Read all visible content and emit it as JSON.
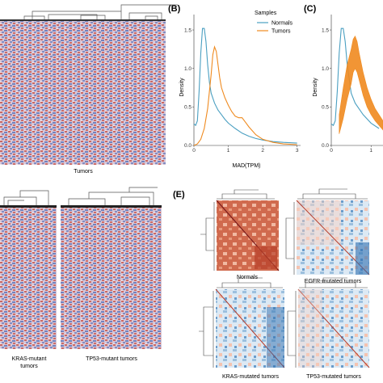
{
  "panels": {
    "B": "(B)",
    "C": "(C)",
    "E": "(E)"
  },
  "heatmap_labels": {
    "tumors": "Tumors",
    "kras_line1": "KRAS-mutant",
    "kras_line2": "tumors",
    "tp53": "TP53-mutant tumors"
  },
  "corr_labels": {
    "normals": "Normals",
    "egfr": "EGFR-mutated tumors",
    "kras": "KRAS-mutated tumors",
    "tp53": "TP53-mutated tumors"
  },
  "colors": {
    "normals": "#4a9fc1",
    "tumors": "#ef8a1f",
    "heat_red": "#c8483a",
    "heat_blue": "#3b5fb3",
    "corr_blue": "#2f6fb0"
  },
  "chart_data": [
    {
      "type": "line",
      "panel": "B",
      "title": "",
      "xlabel": "MAD(TPM)",
      "ylabel": "Density",
      "xlim": [
        0,
        3.1
      ],
      "ylim": [
        0,
        1.7
      ],
      "xticks": [
        "0",
        "1",
        "2",
        "3"
      ],
      "yticks": [
        "0.0",
        "0.5",
        "1.0",
        "1.5"
      ],
      "legend_title": "Samples",
      "legend_position": "top-right",
      "series": [
        {
          "name": "Normals",
          "color": "#4a9fc1",
          "x": [
            0.0,
            0.05,
            0.1,
            0.15,
            0.2,
            0.25,
            0.3,
            0.35,
            0.4,
            0.45,
            0.5,
            0.6,
            0.7,
            0.8,
            0.9,
            1.0,
            1.2,
            1.4,
            1.6,
            1.8,
            2.0,
            2.3,
            2.6,
            3.0
          ],
          "y": [
            0.28,
            0.26,
            0.32,
            0.7,
            1.2,
            1.52,
            1.52,
            1.35,
            1.05,
            0.82,
            0.68,
            0.55,
            0.46,
            0.4,
            0.34,
            0.29,
            0.22,
            0.16,
            0.12,
            0.09,
            0.07,
            0.05,
            0.04,
            0.03
          ]
        },
        {
          "name": "Tumors",
          "color": "#ef8a1f",
          "x": [
            0.0,
            0.1,
            0.2,
            0.3,
            0.4,
            0.5,
            0.55,
            0.6,
            0.65,
            0.7,
            0.75,
            0.8,
            0.9,
            1.0,
            1.1,
            1.2,
            1.3,
            1.4,
            1.5,
            1.6,
            1.8,
            2.0,
            2.3,
            2.6,
            3.0
          ],
          "y": [
            0.0,
            0.02,
            0.08,
            0.22,
            0.48,
            0.92,
            1.18,
            1.28,
            1.22,
            1.05,
            0.88,
            0.75,
            0.62,
            0.52,
            0.44,
            0.38,
            0.36,
            0.36,
            0.3,
            0.24,
            0.14,
            0.08,
            0.04,
            0.02,
            0.01
          ]
        }
      ]
    },
    {
      "type": "line",
      "panel": "C",
      "title": "",
      "xlabel": "",
      "ylabel": "Density",
      "xlim": [
        0,
        1.3
      ],
      "ylim": [
        0,
        1.7
      ],
      "xticks": [
        "0",
        "1"
      ],
      "yticks": [
        "0.0",
        "0.5",
        "1.0",
        "1.5"
      ],
      "series": [
        {
          "name": "",
          "color": "#4a9fc1",
          "x": [
            0.0,
            0.05,
            0.1,
            0.15,
            0.2,
            0.25,
            0.3,
            0.35,
            0.4,
            0.5,
            0.6,
            0.8,
            1.0,
            1.2
          ],
          "y": [
            0.28,
            0.26,
            0.32,
            0.7,
            1.2,
            1.52,
            1.52,
            1.35,
            1.05,
            0.68,
            0.55,
            0.4,
            0.29,
            0.22
          ]
        },
        {
          "name": "",
          "color": "#ef8a1f",
          "band": true,
          "x": [
            0.2,
            0.3,
            0.4,
            0.5,
            0.55,
            0.6,
            0.65,
            0.7,
            0.8,
            0.9,
            1.0,
            1.1,
            1.2,
            1.3
          ],
          "y_low": [
            0.15,
            0.35,
            0.6,
            0.8,
            0.95,
            1.0,
            0.95,
            0.85,
            0.65,
            0.5,
            0.4,
            0.32,
            0.26,
            0.2
          ],
          "y_high": [
            0.4,
            0.75,
            1.05,
            1.25,
            1.38,
            1.42,
            1.35,
            1.2,
            0.95,
            0.75,
            0.6,
            0.48,
            0.4,
            0.32
          ]
        }
      ]
    }
  ]
}
